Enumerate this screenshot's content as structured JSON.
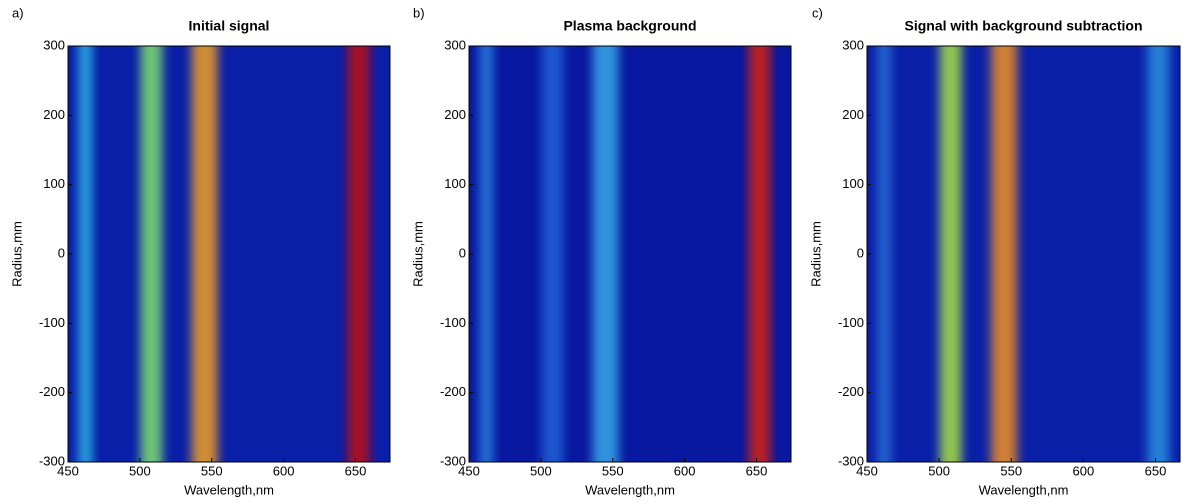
{
  "chart_data": [
    {
      "type": "heatmap",
      "panel": "a)",
      "title": "Initial signal",
      "xlabel": "Wavelength,nm",
      "ylabel": "Radius,mm",
      "xlim": [
        450,
        674
      ],
      "ylim": [
        -300,
        300
      ],
      "xticks": [
        450,
        500,
        550,
        600,
        650
      ],
      "yticks": [
        -300,
        -200,
        -100,
        0,
        100,
        200,
        300
      ],
      "background": "#0a1fa8",
      "x": [
        462,
        508,
        545,
        652
      ],
      "colors": [
        "#2fb8e8",
        "#7fe070",
        "#f0a020",
        "#c01010"
      ]
    },
    {
      "type": "heatmap",
      "panel": "b)",
      "title": "Plasma background",
      "xlabel": "Wavelength,nm",
      "ylabel": "Radius,mm",
      "xlim": [
        450,
        674
      ],
      "ylim": [
        -300,
        300
      ],
      "xticks": [
        450,
        500,
        550,
        600,
        650
      ],
      "yticks": [
        -300,
        -200,
        -100,
        0,
        100,
        200,
        300
      ],
      "background": "#0818a0",
      "x": [
        462,
        508,
        545,
        652
      ],
      "colors": [
        "#2a80e0",
        "#2060d8",
        "#38a8e8",
        "#d82010"
      ]
    },
    {
      "type": "heatmap",
      "panel": "c)",
      "title": "Signal with background subtraction",
      "xlabel": "Wavelength,nm",
      "ylabel": "Radius,mm",
      "xlim": [
        450,
        667
      ],
      "ylim": [
        -300,
        300
      ],
      "xticks": [
        450,
        500,
        550,
        600,
        650
      ],
      "yticks": [
        -300,
        -200,
        -100,
        0,
        100,
        200,
        300
      ],
      "background": "#0a1fa8",
      "x": [
        462,
        508,
        545,
        652
      ],
      "colors": [
        "#2a70d8",
        "#a8e040",
        "#f09020",
        "#2a90e0"
      ]
    }
  ]
}
